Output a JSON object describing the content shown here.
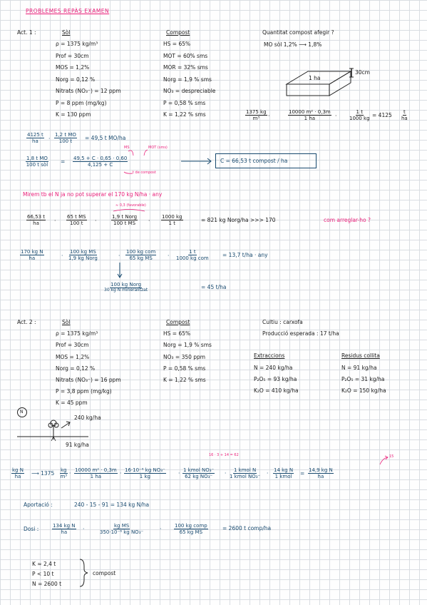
{
  "title": "PROBLEMES REPÀS EXAMEN",
  "act1": {
    "label": "Act. 1 :",
    "sol_header": "Sòl",
    "sol": [
      "ρ = 1375 kg/m³",
      "Prof = 30cm",
      "MOS = 1,2%",
      "Norg = 0,12 %",
      "Nitrats (NO₃⁻) = 12 ppm",
      "P = 8 ppm (mg/kg)",
      "K = 130 ppm"
    ],
    "compost_header": "Compost",
    "compost": [
      "HS = 65%",
      "MOT = 60% sms",
      "MOR = 32% sms",
      "Norg = 1,9 % sms",
      "NO₃ = despreciable",
      "P = 0,58 % sms",
      "K = 1,22 % sms"
    ],
    "question": "Quantitat compost afegir ?",
    "mo_increase": "MO sòl  1,2%  ⟶  1,8%",
    "block_area": "1 ha",
    "block_depth": "30cm",
    "mass_calc": {
      "f1_num": "1375 kg",
      "f1_den": "m³",
      "f2_num": "10000 m² · 0,3m",
      "f2_den": "1 ha",
      "f3_num": "1 t",
      "f3_den": "1000 kg",
      "eq": "= 4125",
      "res_num": "t",
      "res_den": "ha"
    },
    "mo_calc": {
      "a_num": "4125 t",
      "a_den": "ha",
      "b_num": "1,2 t MO",
      "b_den": "100 t",
      "eq": "= 49,5 t MO/ha"
    },
    "annot_ms": "MS",
    "annot_mot": "MOT (sms)",
    "eq2_lhs_num": "1,8 t MO",
    "eq2_lhs_den": "100 t sòl",
    "eq2_rhs_num": "49,5 + C · 0,65 · 0,60",
    "eq2_rhs_den": "4,125 + C",
    "annot_compost": "t de compost",
    "result_c": "C = 66,53 t compost / ha",
    "n_check": "Mirem tb el N ja no pot superar el 170 kg N/ha · any",
    "annot_fav": "≈ 0,3 (favorable)",
    "n_calc": {
      "a_num": "66,53 t",
      "a_den": "ha",
      "b_num": "65 t MS",
      "b_den": "100 t",
      "c_num": "1,9 t Norg",
      "c_den": "100 t MS",
      "d_num": "1000 kg",
      "d_den": "1 t",
      "eq": "= 821 kg Norg/ha  >>> 170",
      "comment": "com arreglar-ho ?"
    },
    "max_calc": {
      "a_num": "170 kg N",
      "a_den": "ha",
      "b_num": "100 kg MS",
      "b_den": "1,9 kg Norg",
      "c_num": "100 kg com",
      "c_den": "65 kg MS",
      "d_num": "1 t",
      "d_den": "1000 kg com",
      "eq": "= 13,7 t/ha · any"
    },
    "sub_calc": {
      "num": "100 kg Norg",
      "den": "30 kg N mineralitzat",
      "eq": "= 45 t/ha"
    }
  },
  "act2": {
    "label": "Act. 2 :",
    "sol_header": "Sòl",
    "sol": [
      "ρ = 1375 kg/m³",
      "Prof = 30cm",
      "MOS = 1,2%",
      "Norg = 0,12 %",
      "Nitrats (NO₃⁻) = 16 ppm",
      "P = 3,8 ppm (mg/kg)",
      "K = 45 ppm"
    ],
    "compost_header": "Compost",
    "compost": [
      "HS = 65%",
      "Norg = 1,9 % sms",
      "NO₃ = 350 ppm",
      "P = 0,58 % sms",
      "K = 1,22 % sms"
    ],
    "cultiu": "Cultiu : carxofa",
    "produccio": "Producció esperada : 17 t/ha",
    "extr_header": "Extraccions",
    "extr": [
      "N = 240 kg/ha",
      "P₂O₅ = 93 kg/ha",
      "K₂O = 410 kg/ha"
    ],
    "res_header": "Residus collita",
    "res": [
      "N = 91 kg/ha",
      "P₂O₅ = 31 kg/ha",
      "K₂O = 150 kg/ha"
    ],
    "circle_label": "N",
    "plant_top": "240 kg/ha",
    "plant_bottom": "91 kg/ha",
    "annot_sum": "16 · 3 + 14 = 62",
    "annot_15": "15",
    "n_calc": {
      "a_num": "kg N",
      "a_den": "ha",
      "a2": "⟶ 1375",
      "b_num": "kg",
      "b_den": "m³",
      "c_num": "10000 m² · 0,3m",
      "c_den": "1 ha",
      "d_num": "16·10⁻⁶ kg NO₃⁻",
      "d_den": "1 kg",
      "e_num": "1 kmol NO₃⁻",
      "e_den": "62 kg NO₃⁻",
      "f_num": "1 kmol N",
      "f_den": "1 kmol NO₃⁻",
      "g_num": "14 kg N",
      "g_den": "1 kmol",
      "res_num": "14,9 kg N",
      "res_den": "ha"
    },
    "aportacio_label": "Aportació :",
    "aportacio_eq": "240 - 15 - 91 = 134 kg N/ha",
    "dosi_label": "Dosi :",
    "dosi": {
      "a_num": "134 kg N",
      "a_den": "ha",
      "b_num": "kg MS",
      "b_den": "350·10⁻⁶ kg NO₃⁻",
      "c_num": "100 kg comp",
      "c_den": "65 kg MS",
      "eq": "= 2600 t comp/ha"
    },
    "summary": [
      "K ≈ 2,4 t",
      "P < 10 t",
      "N = 2600 t"
    ],
    "summary_label": "compost"
  }
}
